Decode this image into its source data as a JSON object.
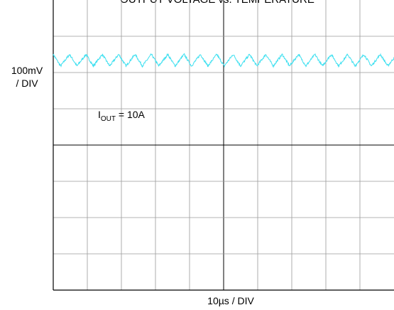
{
  "chart_data": {
    "type": "line",
    "title": "OUTPUT VOLTAGE vs. TEMPERATURE",
    "y_scale_label_line1": "100mV",
    "y_scale_label_line2": "/ DIV",
    "x_scale_label": "10µs / DIV",
    "annotation": {
      "symbol": "I",
      "subscript": "OUT",
      "text": " = 10A"
    },
    "grid": true,
    "divisions": {
      "x": 10,
      "y": 8
    },
    "trace_color": "#40e0f0",
    "series": [
      {
        "description_units": "time in µs, voltage in mV relative to screen center",
        "x_range": [
          0,
          100
        ],
        "ripple": {
          "mean_mv": 234,
          "amplitude_mv": 16,
          "period_us": 4.8,
          "noise_mv": 3
        }
      }
    ]
  }
}
